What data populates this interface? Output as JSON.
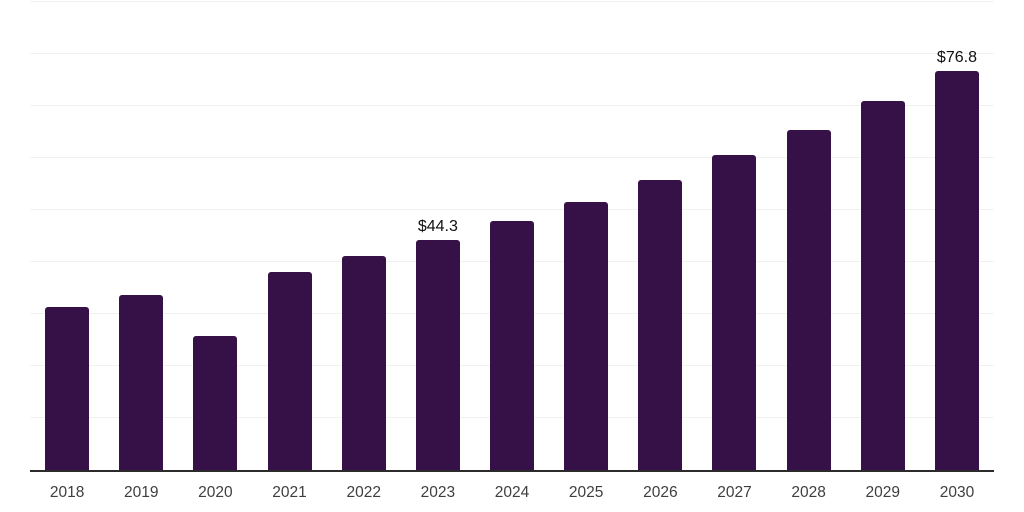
{
  "chart_data": {
    "type": "bar",
    "title": "",
    "categories": [
      "2018",
      "2019",
      "2020",
      "2021",
      "2022",
      "2023",
      "2024",
      "2025",
      "2026",
      "2027",
      "2028",
      "2029",
      "2030"
    ],
    "values": [
      31.3,
      33.6,
      25.8,
      38.1,
      41.1,
      44.3,
      47.8,
      51.6,
      55.8,
      60.5,
      65.4,
      70.9,
      76.8
    ],
    "data_labels": {
      "2023": "$44.3",
      "2030": "$76.8"
    },
    "ylim": [
      0,
      90
    ],
    "gridline_step": 10,
    "grid": true,
    "legend": "none",
    "xlabel": "",
    "ylabel": "",
    "colors": {
      "bar": "#351147",
      "gridline": "#f1f1f2",
      "axis": "#2b2b2b",
      "tick_label": "#3e3e3e",
      "data_label": "#101010",
      "background": "#ffffff"
    }
  }
}
